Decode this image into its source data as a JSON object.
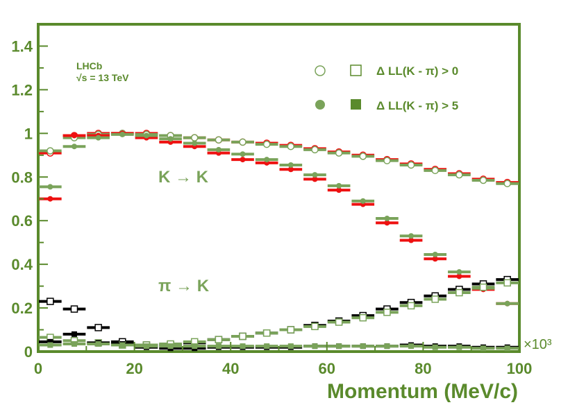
{
  "colors": {
    "frame": "#5a8a2c",
    "green": "#7aa35a",
    "red": "#ee1111",
    "black": "#000000",
    "axis_text": "#5a8a2c"
  },
  "chart_data": {
    "type": "scatter",
    "title": "",
    "xlabel": "Momentum (MeV/c)",
    "x_exponent_label": "×10³",
    "ylabel": "",
    "xlim": [
      0,
      100
    ],
    "ylim": [
      0,
      1.5
    ],
    "x_ticks": [
      "0",
      "20",
      "40",
      "60",
      "80",
      "100"
    ],
    "y_ticks": [
      "0",
      "0.2",
      "0.4",
      "0.6",
      "0.8",
      "1",
      "1.2",
      "1.4"
    ],
    "grid": false,
    "experiment_label": "LHCb",
    "energy_label": "√s = 13 TeV",
    "legend": {
      "placement": "top-right",
      "entries": [
        {
          "label": "Δ LL(K - π) > 0",
          "marker": "open"
        },
        {
          "label": "Δ LL(K - π) > 5",
          "marker": "filled"
        }
      ]
    },
    "annotations": [
      "K → K",
      "π → K"
    ],
    "bin_halfwidth": 2.5,
    "x": [
      2.5,
      7.5,
      12.5,
      17.5,
      22.5,
      27.5,
      32.5,
      37.5,
      42.5,
      47.5,
      52.5,
      57.5,
      62.5,
      67.5,
      72.5,
      77.5,
      82.5,
      87.5,
      92.5,
      97.5
    ],
    "series": [
      {
        "group": "K→K",
        "cut": "open",
        "color": "red",
        "values": [
          0.91,
          0.99,
          1.0,
          1.0,
          1.0,
          0.99,
          0.98,
          0.97,
          0.96,
          0.955,
          0.945,
          0.93,
          0.915,
          0.9,
          0.88,
          0.86,
          0.835,
          0.815,
          0.79,
          0.775
        ]
      },
      {
        "group": "K→K",
        "cut": "open",
        "color": "green",
        "values": [
          0.92,
          0.98,
          0.995,
          1.0,
          0.995,
          0.99,
          0.98,
          0.97,
          0.96,
          0.95,
          0.94,
          0.925,
          0.91,
          0.895,
          0.875,
          0.855,
          0.83,
          0.81,
          0.785,
          0.77
        ]
      },
      {
        "group": "K→K",
        "cut": "filled",
        "color": "red",
        "values": [
          0.7,
          0.99,
          0.99,
          1.0,
          0.98,
          0.96,
          0.94,
          0.91,
          0.88,
          0.865,
          0.835,
          0.79,
          0.74,
          0.675,
          0.59,
          0.51,
          0.425,
          0.345,
          0.285,
          0.22
        ]
      },
      {
        "group": "K→K",
        "cut": "filled",
        "color": "green",
        "values": [
          0.755,
          0.94,
          0.98,
          0.995,
          0.99,
          0.975,
          0.955,
          0.925,
          0.905,
          0.88,
          0.855,
          0.81,
          0.76,
          0.69,
          0.61,
          0.53,
          0.445,
          0.365,
          0.29,
          0.22
        ]
      },
      {
        "group": "π→K",
        "cut": "open",
        "color": "black",
        "values": [
          0.23,
          0.195,
          0.11,
          0.045,
          0.03,
          0.03,
          0.04,
          0.055,
          0.07,
          0.085,
          0.1,
          0.12,
          0.14,
          0.165,
          0.195,
          0.225,
          0.255,
          0.285,
          0.31,
          0.33
        ]
      },
      {
        "group": "π→K",
        "cut": "open",
        "color": "green",
        "values": [
          0.065,
          0.05,
          0.04,
          0.03,
          0.03,
          0.035,
          0.045,
          0.055,
          0.07,
          0.085,
          0.1,
          0.115,
          0.135,
          0.155,
          0.18,
          0.21,
          0.24,
          0.27,
          0.295,
          0.315
        ]
      },
      {
        "group": "π→K",
        "cut": "filled",
        "color": "black",
        "values": [
          0.045,
          0.08,
          0.04,
          0.035,
          0.02,
          0.015,
          0.015,
          0.02,
          0.02,
          0.02,
          0.02,
          0.025,
          0.025,
          0.025,
          0.025,
          0.03,
          0.025,
          0.025,
          0.02,
          0.02
        ]
      },
      {
        "group": "π→K",
        "cut": "filled",
        "color": "green",
        "values": [
          0.03,
          0.035,
          0.035,
          0.03,
          0.025,
          0.025,
          0.025,
          0.025,
          0.025,
          0.025,
          0.025,
          0.025,
          0.025,
          0.025,
          0.025,
          0.025,
          0.02,
          0.02,
          0.015,
          0.015
        ]
      }
    ]
  }
}
